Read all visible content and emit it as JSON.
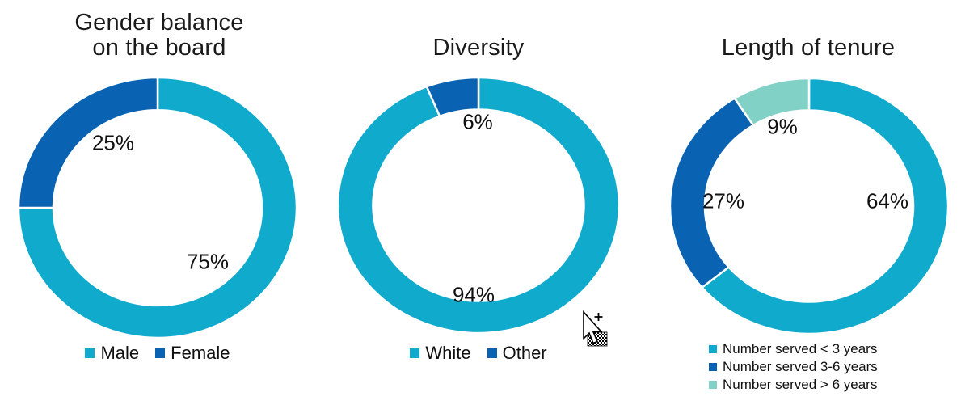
{
  "page": {
    "background": "#FFFFFF"
  },
  "colors": {
    "cyan": "#10AACD",
    "dark_blue": "#0A62B2",
    "teal": "#82D1C6",
    "text": "#101010"
  },
  "chart_data": [
    {
      "type": "pie",
      "subtype": "donut",
      "title": "Gender balance\non the board",
      "categories": [
        "Male",
        "Female"
      ],
      "values": [
        75,
        25
      ],
      "labels": [
        "75%",
        "25%"
      ],
      "segment_colors": [
        "#10AACD",
        "#0A62B2"
      ],
      "hole": 0.75,
      "start_angle_deg": 0,
      "direction": "clockwise",
      "legend_position": "bottom-center"
    },
    {
      "type": "pie",
      "subtype": "donut",
      "title": "Diversity",
      "categories": [
        "White",
        "Other"
      ],
      "values": [
        94,
        6
      ],
      "labels": [
        "94%",
        "6%"
      ],
      "segment_colors": [
        "#10AACD",
        "#0A62B2"
      ],
      "hole": 0.75,
      "start_angle_deg": 0,
      "direction": "clockwise",
      "legend_position": "bottom-center"
    },
    {
      "type": "pie",
      "subtype": "donut",
      "title": "Length of tenure",
      "categories": [
        "Number served < 3 years",
        "Number served 3-6 years",
        "Number served > 6 years"
      ],
      "values": [
        64,
        27,
        9
      ],
      "labels": [
        "64%",
        "27%",
        "9%"
      ],
      "segment_colors": [
        "#10AACD",
        "#0A62B2",
        "#82D1C6"
      ],
      "hole": 0.75,
      "start_angle_deg": 0,
      "direction": "clockwise",
      "legend_position": "bottom-left-vertical"
    }
  ],
  "cursor": {
    "type": "drag-copy-arrow-with-plus-and-marquee"
  }
}
